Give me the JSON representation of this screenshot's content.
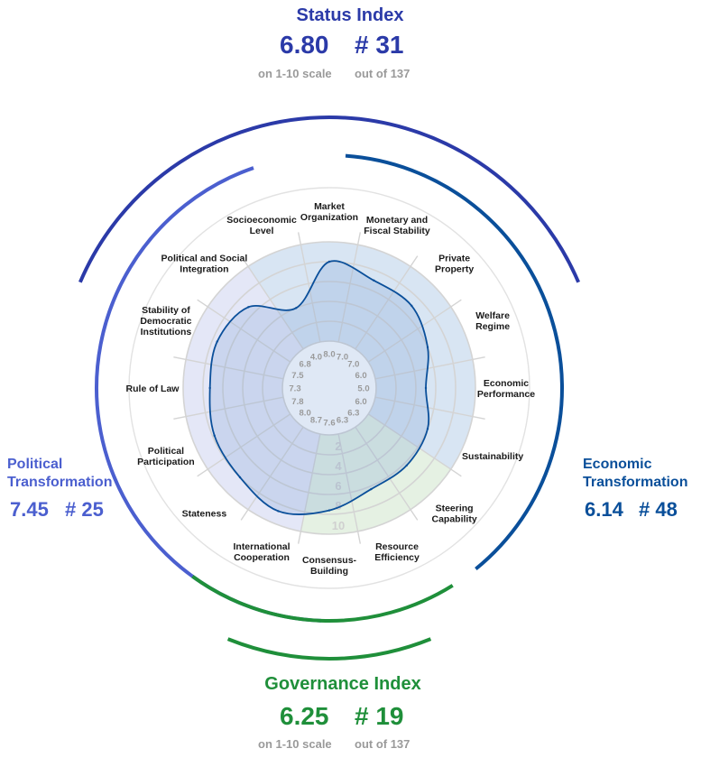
{
  "colors": {
    "status": "#2b3aa8",
    "political": "#4b5fcf",
    "economic": "#0a4f9a",
    "governance": "#1f8f3a",
    "political_fill": "#e4e7f7",
    "economic_fill": "#d8e5f3",
    "governance_fill": "#e5f1e3",
    "grid": "#d4d4d4",
    "muted": "#9a9a9a"
  },
  "status_index": {
    "title": "Status Index",
    "score": "6.80",
    "rank": "# 31",
    "score_caption": "on 1-10 scale",
    "rank_caption": "out of 137"
  },
  "governance_index": {
    "title": "Governance Index",
    "score": "6.25",
    "rank": "# 19",
    "score_caption": "on 1-10 scale",
    "rank_caption": "out of 137"
  },
  "political_transformation": {
    "title_line1": "Political",
    "title_line2": "Transformation",
    "score": "7.45",
    "rank": "# 25"
  },
  "economic_transformation": {
    "title_line1": "Economic",
    "title_line2": "Transformation",
    "score": "6.14",
    "rank": "# 48"
  },
  "chart_data": {
    "type": "radar",
    "scale_max": 10,
    "ticks": [
      "2",
      "4",
      "6",
      "8",
      "10"
    ],
    "grid": true,
    "categories": [
      {
        "label": [
          "Market",
          "Organization"
        ],
        "value": 8.0,
        "display": "8.0",
        "group": "economic"
      },
      {
        "label": [
          "Monetary and",
          "Fiscal Stability"
        ],
        "value": 7.0,
        "display": "7.0",
        "group": "economic"
      },
      {
        "label": [
          "Private",
          "Property"
        ],
        "value": 7.0,
        "display": "7.0",
        "group": "economic"
      },
      {
        "label": [
          "Welfare",
          "Regime"
        ],
        "value": 6.0,
        "display": "6.0",
        "group": "economic"
      },
      {
        "label": [
          "Economic",
          "Performance"
        ],
        "value": 5.0,
        "display": "5.0",
        "group": "economic"
      },
      {
        "label": [
          "Sustainability"
        ],
        "value": 6.0,
        "display": "6.0",
        "group": "economic"
      },
      {
        "label": [
          "Steering",
          "Capability"
        ],
        "value": 6.3,
        "display": "6.3",
        "group": "governance"
      },
      {
        "label": [
          "Resource",
          "Efficiency"
        ],
        "value": 6.3,
        "display": "6.3",
        "group": "governance"
      },
      {
        "label": [
          "Consensus-",
          "Building"
        ],
        "value": 7.6,
        "display": "7.6",
        "group": "governance"
      },
      {
        "label": [
          "International",
          "Cooperation"
        ],
        "value": 8.7,
        "display": "8.7",
        "group": "political"
      },
      {
        "label": [
          "Stateness"
        ],
        "value": 8.0,
        "display": "8.0",
        "group": "political"
      },
      {
        "label": [
          "Political",
          "Participation"
        ],
        "value": 7.8,
        "display": "7.8",
        "group": "political"
      },
      {
        "label": [
          "Rule of Law"
        ],
        "value": 7.3,
        "display": "7.3",
        "group": "political"
      },
      {
        "label": [
          "Stability of",
          "Democratic",
          "Institutions"
        ],
        "value": 7.5,
        "display": "7.5",
        "group": "political"
      },
      {
        "label": [
          "Political and Social",
          "Integration"
        ],
        "value": 6.8,
        "display": "6.8",
        "group": "political"
      },
      {
        "label": [
          "Socioeconomic",
          "Level"
        ],
        "value": 4.0,
        "display": "4.0",
        "group": "economic"
      }
    ]
  }
}
